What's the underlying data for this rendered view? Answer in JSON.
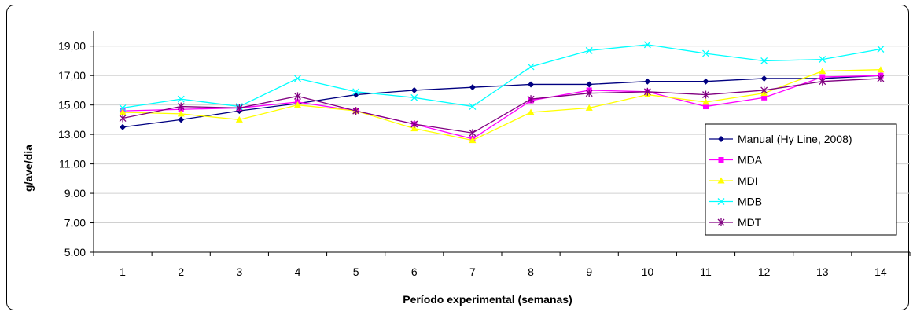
{
  "chart_data": {
    "type": "line",
    "xlabel": "Período experimental (semanas)",
    "ylabel": "g/ave/dia",
    "categories": [
      "1",
      "2",
      "3",
      "4",
      "5",
      "6",
      "7",
      "8",
      "9",
      "10",
      "11",
      "12",
      "13",
      "14"
    ],
    "ylim": [
      5,
      20
    ],
    "yticks": [
      "5,00",
      "7,00",
      "9,00",
      "11,00",
      "13,00",
      "15,00",
      "17,00",
      "19,00"
    ],
    "ytick_values": [
      5,
      7,
      9,
      11,
      13,
      15,
      17,
      19
    ],
    "grid": true,
    "legend_position": "right",
    "series": [
      {
        "name": "Manual (Hy Line, 2008)",
        "color": "#000080",
        "marker": "diamond-icon",
        "values": [
          13.5,
          14.0,
          14.6,
          15.1,
          15.7,
          16.0,
          16.2,
          16.4,
          16.4,
          16.6,
          16.6,
          16.8,
          16.8,
          17.0
        ]
      },
      {
        "name": "MDA",
        "color": "#FF00FF",
        "marker": "square-icon",
        "values": [
          14.6,
          14.7,
          14.8,
          15.2,
          14.6,
          13.7,
          12.7,
          15.3,
          16.0,
          15.9,
          14.9,
          15.5,
          16.9,
          17.0
        ]
      },
      {
        "name": "MDI",
        "color": "#FFFF00",
        "marker": "triangle-icon",
        "values": [
          14.5,
          14.4,
          14.0,
          15.0,
          14.6,
          13.4,
          12.6,
          14.5,
          14.8,
          15.7,
          15.2,
          15.8,
          17.3,
          17.4
        ]
      },
      {
        "name": "MDB",
        "color": "#00FFFF",
        "marker": "x-icon",
        "values": [
          14.8,
          15.4,
          14.9,
          16.8,
          15.9,
          15.5,
          14.9,
          17.6,
          18.7,
          19.1,
          18.5,
          18.0,
          18.1,
          18.8
        ]
      },
      {
        "name": "MDT",
        "color": "#800080",
        "marker": "asterisk-icon",
        "values": [
          14.1,
          14.9,
          14.8,
          15.6,
          14.6,
          13.7,
          13.1,
          15.4,
          15.8,
          15.9,
          15.7,
          16.0,
          16.6,
          16.8
        ]
      }
    ]
  }
}
